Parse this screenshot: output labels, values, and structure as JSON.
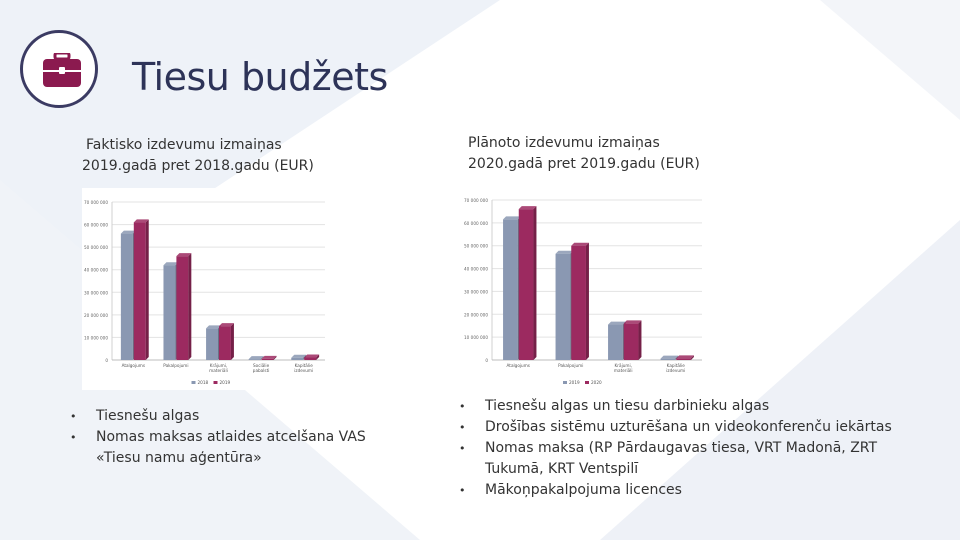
{
  "title": "Tiesu budžets",
  "icon": "briefcase-icon",
  "colors": {
    "accent": "#8b1a4f",
    "title": "#2d3358",
    "series_a": "#8a98b2",
    "series_b": "#9c2a60"
  },
  "left": {
    "subtitle_line1": "Faktisko izdevumu izmaiņas",
    "subtitle_line2": "2019.gadā pret 2018.gadu (EUR)",
    "bullets": [
      "Tiesnešu algas",
      "Nomas maksas atlaides atcelšana VAS «Tiesu namu aģentūra»"
    ]
  },
  "right": {
    "subtitle_line1": "Plānoto izdevumu izmaiņas",
    "subtitle_line2": "2020.gadā pret 2019.gadu (EUR)",
    "bullets": [
      "Tiesnešu algas un tiesu darbinieku algas",
      "Drošības sistēmu uzturēšana un videokonferenču iekārtas",
      "Nomas maksa (RP Pārdaugavas tiesa, VRT Madonā, ZRT Tukumā, KRT Ventspilī",
      "Mākoņpakalpojuma licences"
    ]
  },
  "chart_data": [
    {
      "type": "bar",
      "categories": [
        "Atalgojums",
        "Pakalpojumi",
        "Krājumi, materiāli",
        "Sociālie pabalsti",
        "Kapitālie izdevumi"
      ],
      "series": [
        {
          "name": "2018",
          "values": [
            56000000,
            42000000,
            14000000,
            400000,
            1000000
          ]
        },
        {
          "name": "2019",
          "values": [
            61000000,
            46000000,
            15000000,
            500000,
            1100000
          ]
        }
      ],
      "yticks": [
        "0",
        "10 000 000",
        "20 000 000",
        "30 000 000",
        "40 000 000",
        "50 000 000",
        "60 000 000",
        "70 000 000"
      ],
      "ylim": [
        0,
        70000000
      ]
    },
    {
      "type": "bar",
      "categories": [
        "Atalgojums",
        "Pakalpojumi",
        "Krājumi, materiāli",
        "Kapitālie izdevumi"
      ],
      "series": [
        {
          "name": "2019",
          "values": [
            61500000,
            46500000,
            15500000,
            600000
          ]
        },
        {
          "name": "2020",
          "values": [
            66000000,
            50000000,
            16000000,
            700000
          ]
        }
      ],
      "yticks": [
        "0",
        "10 000 000",
        "20 000 000",
        "30 000 000",
        "40 000 000",
        "50 000 000",
        "60 000 000",
        "70 000 000"
      ],
      "ylim": [
        0,
        70000000
      ]
    }
  ]
}
